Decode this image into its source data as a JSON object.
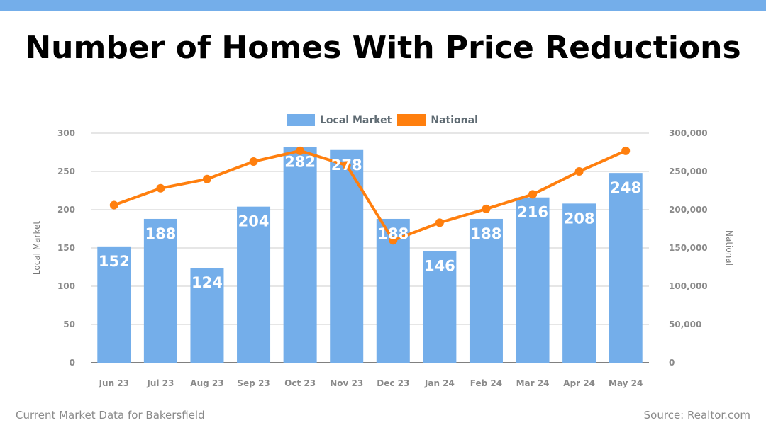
{
  "header": {
    "title": "Number of Homes With Price Reductions"
  },
  "footer": {
    "left_text": "Current Market Data for Bakersfield",
    "right_text": "Source: Realtor.com"
  },
  "colors": {
    "top_bar": "#74aeea",
    "bar": "#74aeea",
    "line": "#ff7f0e",
    "grid": "#cccccc",
    "tick_text": "#8a8a8a"
  },
  "chart_data": {
    "type": "bar",
    "title": "Number of Homes With Price Reductions",
    "categories": [
      "Jun 23",
      "Jul 23",
      "Aug 23",
      "Sep 23",
      "Oct 23",
      "Nov 23",
      "Dec 23",
      "Jan 24",
      "Feb 24",
      "Mar 24",
      "Apr 24",
      "May 24"
    ],
    "series": [
      {
        "name": "Local Market",
        "type": "bar",
        "axis": "left",
        "values": [
          152,
          188,
          124,
          204,
          282,
          278,
          188,
          146,
          188,
          216,
          208,
          248
        ]
      },
      {
        "name": "National",
        "type": "line",
        "axis": "right",
        "values": [
          206000,
          228000,
          240000,
          263000,
          277000,
          258000,
          160000,
          183000,
          201000,
          220000,
          250000,
          277000
        ]
      }
    ],
    "ylabel": "Local Market",
    "y2label": "National",
    "ylim": [
      0,
      300
    ],
    "y2lim": [
      0,
      300000
    ],
    "yticks": [
      "0",
      "50",
      "100",
      "150",
      "200",
      "250",
      "300"
    ],
    "y2ticks": [
      "0",
      "50,000",
      "100,000",
      "150,000",
      "200,000",
      "250,000",
      "300,000"
    ],
    "grid": true,
    "legend_position": "top-center"
  }
}
